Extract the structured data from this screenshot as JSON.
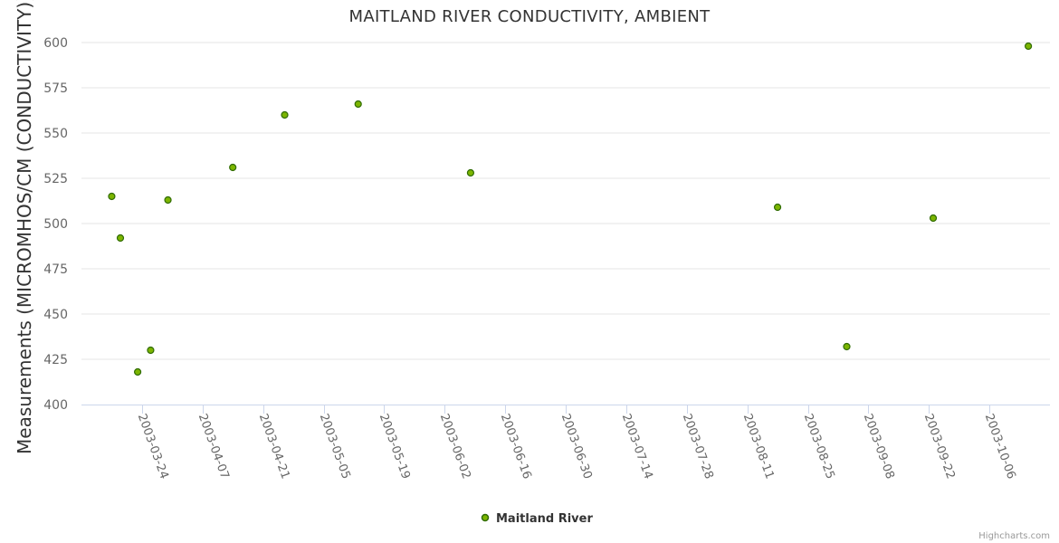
{
  "chart_data": {
    "type": "scatter",
    "title": "MAITLAND RIVER CONDUCTIVITY, AMBIENT",
    "xlabel": "",
    "ylabel": "Measurements (MICROMHOS/CM (CONDUCTIVITY))",
    "ylim": [
      400,
      600
    ],
    "yticks": [
      400,
      425,
      450,
      475,
      500,
      525,
      550,
      575,
      600
    ],
    "xlim": [
      "2003-03-10",
      "2003-10-20"
    ],
    "xticks": [
      "2003-03-24",
      "2003-04-07",
      "2003-04-21",
      "2003-05-05",
      "2003-05-19",
      "2003-06-02",
      "2003-06-16",
      "2003-06-30",
      "2003-07-14",
      "2003-07-28",
      "2003-08-11",
      "2003-08-25",
      "2003-09-08",
      "2003-09-22",
      "2003-10-06"
    ],
    "grid": true,
    "legend_position": "bottom-center",
    "series": [
      {
        "name": "Maitland River",
        "color": "#7cb500",
        "points": [
          {
            "x": "2003-03-17",
            "y": 515
          },
          {
            "x": "2003-03-19",
            "y": 492
          },
          {
            "x": "2003-03-23",
            "y": 418
          },
          {
            "x": "2003-03-26",
            "y": 430
          },
          {
            "x": "2003-03-30",
            "y": 513
          },
          {
            "x": "2003-04-14",
            "y": 531
          },
          {
            "x": "2003-04-26",
            "y": 560
          },
          {
            "x": "2003-05-13",
            "y": 566
          },
          {
            "x": "2003-06-08",
            "y": 528
          },
          {
            "x": "2003-08-18",
            "y": 509
          },
          {
            "x": "2003-09-03",
            "y": 432
          },
          {
            "x": "2003-09-23",
            "y": 503
          },
          {
            "x": "2003-10-15",
            "y": 598
          }
        ]
      }
    ]
  },
  "credits": "Highcharts.com"
}
